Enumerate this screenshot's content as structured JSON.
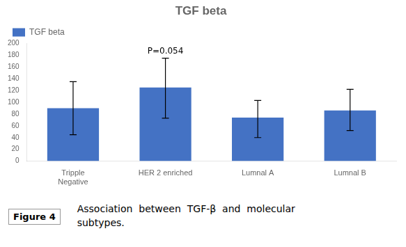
{
  "chart_data": {
    "type": "bar",
    "title": "TGF beta",
    "categories": [
      "Tripple\nNegative",
      "HER 2 enriched",
      "Lumnal A",
      "Lumnal B"
    ],
    "series": [
      {
        "name": "TGF beta",
        "color": "#4472C4",
        "values": [
          90,
          125,
          74,
          86
        ],
        "errors_low": [
          45,
          52,
          34,
          34
        ],
        "errors_high": [
          45,
          50,
          29,
          36
        ]
      }
    ],
    "ylim": [
      0,
      200
    ],
    "yticks": [
      0,
      20,
      40,
      60,
      80,
      100,
      120,
      140,
      160,
      180,
      200
    ],
    "annotations": [
      {
        "text": "P=0.054",
        "category": "HER 2 enriched"
      }
    ],
    "figure_label": "Figure 4",
    "caption": "Association  between  TGF-β  and  molecular\nsubtypes.",
    "grid": false,
    "legend": "upper left"
  }
}
